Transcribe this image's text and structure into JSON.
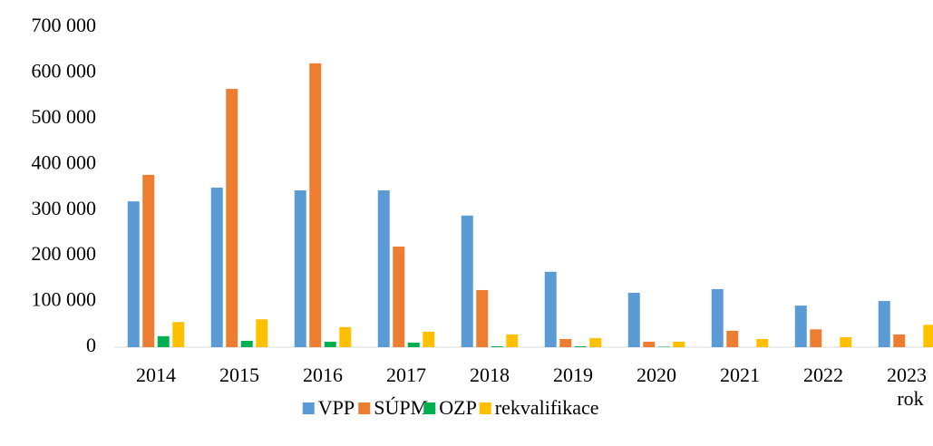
{
  "chart_data": {
    "type": "bar",
    "categories": [
      "2014",
      "2015",
      "2016",
      "2017",
      "2018",
      "2019",
      "2020",
      "2021",
      "2022",
      "2023"
    ],
    "x_label": "rok",
    "series": [
      {
        "name": "VPP",
        "color": "#5b9bd5",
        "values": [
          319000,
          349000,
          343000,
          343000,
          288000,
          165000,
          119000,
          127000,
          91000,
          101000
        ]
      },
      {
        "name": "SÚPM",
        "color": "#ed7d31",
        "values": [
          377000,
          565000,
          621000,
          220000,
          125000,
          18000,
          12000,
          36000,
          39000,
          28000
        ]
      },
      {
        "name": "OZP",
        "color": "#00b050",
        "values": [
          24000,
          14000,
          12000,
          10000,
          2000,
          2000,
          1000,
          0,
          0,
          0
        ]
      },
      {
        "name": "rekvalifikace",
        "color": "#ffc000",
        "values": [
          55000,
          61000,
          44000,
          34000,
          28000,
          20000,
          12000,
          18000,
          22000,
          49000
        ]
      }
    ],
    "ylim": [
      0,
      700000
    ],
    "yticks": [
      0,
      {
        "value": 100000,
        "label": "100 000"
      },
      {
        "value": 200000,
        "label": "200 000"
      },
      {
        "value": 300000,
        "label": "300 000"
      },
      {
        "value": 400000,
        "label": "400 000"
      },
      {
        "value": 500000,
        "label": "500 000"
      },
      {
        "value": 600000,
        "label": "600 000"
      },
      {
        "value": 700000,
        "label": "700 000"
      }
    ],
    "grid": false,
    "legend": "bottom"
  }
}
